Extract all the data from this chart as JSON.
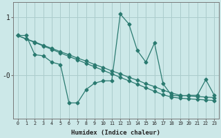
{
  "xlabel": "Humidex (Indice chaleur)",
  "bg_color": "#cce8e8",
  "grid_color": "#aacccc",
  "line_color": "#2a7a70",
  "x_data": [
    0,
    1,
    2,
    3,
    4,
    5,
    6,
    7,
    8,
    9,
    10,
    11,
    12,
    13,
    14,
    15,
    16,
    17,
    18,
    19,
    20,
    21,
    22,
    23
  ],
  "y_main": [
    0.68,
    0.68,
    0.35,
    0.33,
    0.22,
    0.18,
    -0.48,
    -0.48,
    -0.25,
    -0.14,
    -0.1,
    -0.1,
    1.05,
    0.88,
    0.42,
    0.22,
    0.55,
    -0.15,
    -0.35,
    -0.36,
    -0.35,
    -0.35,
    -0.08,
    -0.35
  ],
  "y_upper": [
    0.68,
    0.62,
    0.57,
    0.51,
    0.46,
    0.4,
    0.35,
    0.29,
    0.24,
    0.18,
    0.13,
    0.07,
    0.02,
    -0.04,
    -0.09,
    -0.15,
    -0.2,
    -0.26,
    -0.31,
    -0.35,
    -0.36,
    -0.37,
    -0.38,
    -0.39
  ],
  "y_lower": [
    0.68,
    0.62,
    0.56,
    0.5,
    0.44,
    0.38,
    0.32,
    0.26,
    0.2,
    0.14,
    0.08,
    0.02,
    -0.04,
    -0.1,
    -0.16,
    -0.22,
    -0.28,
    -0.34,
    -0.38,
    -0.4,
    -0.41,
    -0.42,
    -0.43,
    -0.44
  ],
  "ylim": [
    -0.75,
    1.25
  ],
  "xtick_labels": [
    "0",
    "1",
    "2",
    "3",
    "4",
    "5",
    "6",
    "7",
    "8",
    "9",
    "10",
    "11",
    "12",
    "13",
    "14",
    "15",
    "16",
    "17",
    "18",
    "19",
    "20",
    "21",
    "22",
    "23"
  ]
}
